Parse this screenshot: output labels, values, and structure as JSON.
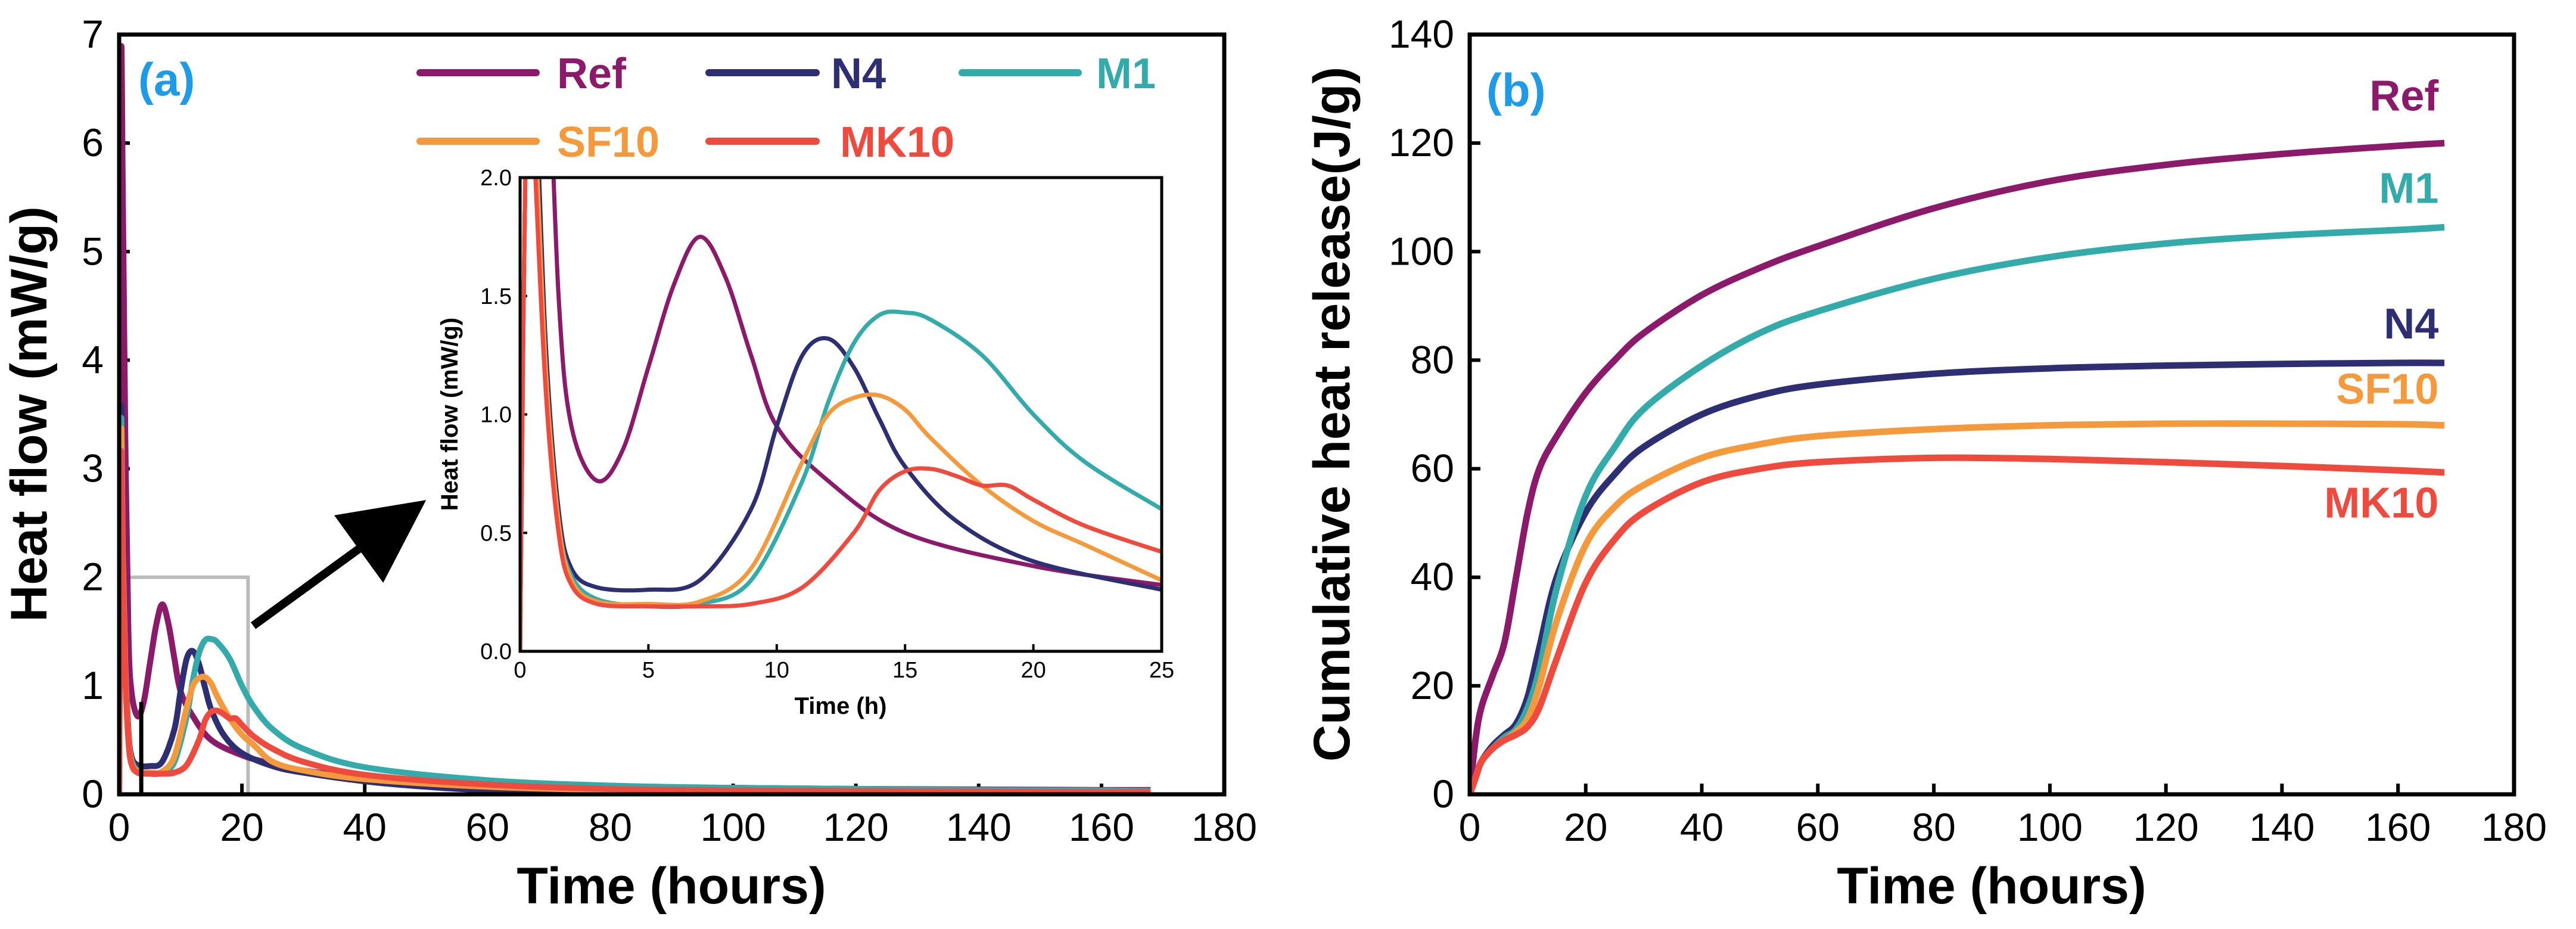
{
  "colors": {
    "Ref": "#8B1A6B",
    "N4": "#2E2E72",
    "M1": "#33ABAA",
    "SF10": "#F49A3C",
    "MK10": "#EE4B3E",
    "panel_label": "#1E9BE6",
    "box": "#bbbbbb"
  },
  "chart_data": [
    {
      "id": "a",
      "type": "line",
      "panel_label": "(a)",
      "xlabel": "Time (hours)",
      "ylabel": "Heat flow (mW/g)",
      "xlim": [
        0,
        180
      ],
      "ylim": [
        0,
        7
      ],
      "xticks": [
        0,
        20,
        40,
        60,
        80,
        100,
        120,
        140,
        160,
        180
      ],
      "yticks": [
        0,
        1,
        2,
        3,
        4,
        5,
        6,
        7
      ],
      "legend_position": "top",
      "legend_rows": [
        [
          "Ref",
          "N4",
          "M1"
        ],
        [
          "SF10",
          "MK10"
        ]
      ],
      "zoom_box": {
        "x": [
          0,
          21
        ],
        "y": [
          0,
          2
        ]
      },
      "vertical_marker_x": 3.6,
      "series": [
        {
          "name": "Ref",
          "x": [
            0,
            0.3,
            0.6,
            1,
            1.5,
            2,
            3,
            4,
            5,
            6,
            7,
            8,
            9,
            10,
            12,
            15,
            20,
            25,
            30,
            40,
            60,
            80,
            100,
            120,
            140,
            160,
            168
          ],
          "y": [
            0,
            6.6,
            5.5,
            3.3,
            1.5,
            0.95,
            0.72,
            0.85,
            1.2,
            1.55,
            1.75,
            1.58,
            1.25,
            0.95,
            0.72,
            0.5,
            0.36,
            0.28,
            0.22,
            0.16,
            0.1,
            0.07,
            0.06,
            0.05,
            0.045,
            0.04,
            0.04
          ]
        },
        {
          "name": "N4",
          "x": [
            0,
            0.3,
            0.6,
            1,
            1.5,
            2,
            3,
            5,
            7,
            9,
            10,
            11,
            12,
            13,
            14,
            15,
            17,
            20,
            25,
            30,
            40,
            50,
            60,
            80,
            100,
            120,
            140,
            160,
            168
          ],
          "y": [
            0,
            3.5,
            2.4,
            1.3,
            0.6,
            0.35,
            0.27,
            0.26,
            0.3,
            0.6,
            0.95,
            1.25,
            1.32,
            1.2,
            0.98,
            0.78,
            0.55,
            0.38,
            0.26,
            0.2,
            0.12,
            0.07,
            0.04,
            0.02,
            0.015,
            0.01,
            0.01,
            0.01,
            0.01
          ]
        },
        {
          "name": "M1",
          "x": [
            0,
            0.3,
            0.6,
            1,
            1.5,
            2,
            3,
            5,
            7,
            9,
            11,
            12,
            13,
            14,
            15,
            16,
            18,
            20,
            22,
            25,
            30,
            40,
            60,
            80,
            100,
            120,
            140,
            160,
            168
          ],
          "y": [
            0,
            3.4,
            2.2,
            1.2,
            0.55,
            0.32,
            0.22,
            0.19,
            0.2,
            0.3,
            0.72,
            1.05,
            1.3,
            1.42,
            1.43,
            1.4,
            1.25,
            1.0,
            0.8,
            0.6,
            0.42,
            0.25,
            0.13,
            0.08,
            0.06,
            0.05,
            0.04,
            0.035,
            0.03
          ]
        },
        {
          "name": "SF10",
          "x": [
            0,
            0.3,
            0.6,
            1,
            1.5,
            2,
            3,
            5,
            7,
            9,
            11,
            12,
            13,
            14,
            15,
            16,
            18,
            20,
            22,
            25,
            30,
            40,
            60,
            80,
            100,
            120,
            140,
            160,
            168
          ],
          "y": [
            0,
            3.3,
            2.2,
            1.2,
            0.55,
            0.3,
            0.21,
            0.2,
            0.21,
            0.35,
            0.8,
            1.0,
            1.07,
            1.08,
            1.02,
            0.9,
            0.7,
            0.55,
            0.45,
            0.3,
            0.22,
            0.14,
            0.07,
            0.04,
            0.03,
            0.025,
            0.02,
            0.02,
            0.02
          ]
        },
        {
          "name": "MK10",
          "x": [
            0,
            0.3,
            0.6,
            1,
            1.5,
            2,
            3,
            5,
            7,
            9,
            11,
            13,
            14,
            15,
            16,
            17,
            18,
            19,
            20,
            22,
            25,
            30,
            40,
            60,
            80,
            100,
            120,
            140,
            160,
            168
          ],
          "y": [
            0,
            3.1,
            2.0,
            1.1,
            0.5,
            0.28,
            0.2,
            0.19,
            0.19,
            0.2,
            0.27,
            0.5,
            0.68,
            0.76,
            0.77,
            0.74,
            0.7,
            0.7,
            0.64,
            0.53,
            0.42,
            0.3,
            0.18,
            0.09,
            0.05,
            0.035,
            0.03,
            0.025,
            0.02,
            0.02
          ]
        }
      ]
    },
    {
      "id": "a-inset",
      "type": "line",
      "xlabel": "Time (h)",
      "ylabel": "Heat flow (mW/g)",
      "xlim": [
        0,
        25
      ],
      "ylim": [
        0,
        2.0
      ],
      "xticks": [
        0,
        5,
        10,
        15,
        20,
        25
      ],
      "yticks": [
        0.0,
        0.5,
        1.0,
        1.5,
        2.0
      ],
      "series_ref": "same series as panel (a), zoomed"
    },
    {
      "id": "b",
      "type": "line",
      "panel_label": "(b)",
      "xlabel": "Time (hours)",
      "ylabel": "Cumulative heat release(J/g)",
      "xlim": [
        0,
        180
      ],
      "ylim": [
        0,
        140
      ],
      "xticks": [
        0,
        20,
        40,
        60,
        80,
        100,
        120,
        140,
        160,
        180
      ],
      "yticks": [
        0,
        20,
        40,
        60,
        80,
        100,
        120,
        140
      ],
      "series": [
        {
          "name": "Ref",
          "x": [
            0,
            1,
            2,
            4,
            6,
            8,
            10,
            12,
            15,
            20,
            25,
            30,
            40,
            50,
            60,
            80,
            100,
            120,
            140,
            160,
            168
          ],
          "y": [
            0,
            10,
            16,
            22,
            28,
            40,
            52,
            60,
            66,
            74,
            80,
            85,
            92,
            97,
            101,
            108,
            113,
            116,
            118,
            119.5,
            120
          ]
        },
        {
          "name": "N4",
          "x": [
            0,
            1,
            2,
            4,
            6,
            8,
            10,
            12,
            15,
            20,
            25,
            30,
            40,
            50,
            60,
            80,
            100,
            120,
            140,
            160,
            168
          ],
          "y": [
            0,
            3,
            6,
            9,
            11,
            13,
            18,
            27,
            40,
            52,
            59,
            64,
            70,
            73.5,
            75.5,
            77.5,
            78.5,
            79,
            79.3,
            79.5,
            79.5
          ]
        },
        {
          "name": "M1",
          "x": [
            0,
            1,
            2,
            4,
            6,
            8,
            10,
            12,
            15,
            20,
            25,
            30,
            40,
            50,
            60,
            80,
            100,
            120,
            140,
            160,
            168
          ],
          "y": [
            0,
            3,
            6,
            8.5,
            10.5,
            12,
            16,
            23,
            38,
            55,
            64,
            71,
            79,
            85,
            89,
            95,
            99,
            101.5,
            103,
            104,
            104.5
          ]
        },
        {
          "name": "SF10",
          "x": [
            0,
            1,
            2,
            4,
            6,
            8,
            10,
            12,
            15,
            20,
            25,
            30,
            40,
            50,
            60,
            80,
            100,
            120,
            140,
            160,
            168
          ],
          "y": [
            0,
            3,
            6,
            8.5,
            10,
            11.5,
            14,
            20,
            32,
            46,
            53,
            57,
            62,
            64.5,
            66,
            67.3,
            68,
            68.3,
            68.3,
            68.2,
            68
          ]
        },
        {
          "name": "MK10",
          "x": [
            0,
            1,
            2,
            4,
            6,
            8,
            10,
            12,
            15,
            20,
            25,
            30,
            40,
            50,
            60,
            80,
            100,
            120,
            140,
            160,
            168
          ],
          "y": [
            0,
            3,
            6,
            8.5,
            10,
            11,
            12.5,
            16,
            25,
            39,
            47,
            52,
            57.5,
            60,
            61.2,
            62,
            61.8,
            61.2,
            60.5,
            59.7,
            59.3
          ]
        }
      ],
      "end_labels": [
        "Ref",
        "M1",
        "N4",
        "SF10",
        "MK10"
      ]
    }
  ]
}
